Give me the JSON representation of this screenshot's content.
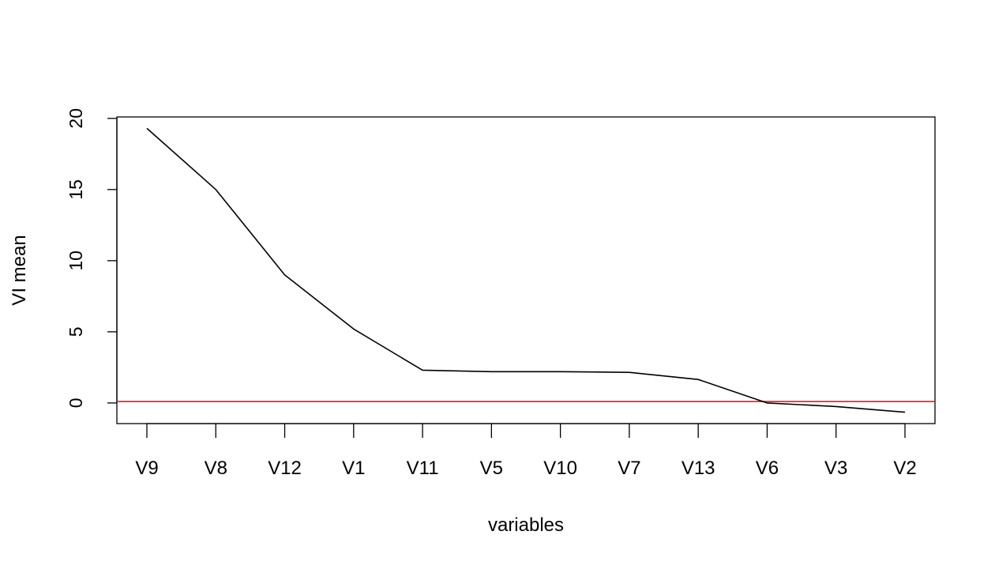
{
  "chart_data": {
    "type": "line",
    "title": "",
    "xlabel": "variables",
    "ylabel": "VI mean",
    "categories": [
      "V9",
      "V8",
      "V12",
      "V1",
      "V11",
      "V5",
      "V10",
      "V7",
      "V13",
      "V6",
      "V3",
      "V2"
    ],
    "series": [
      {
        "values": [
          19.3,
          15.0,
          9.0,
          5.2,
          2.3,
          2.2,
          2.2,
          2.15,
          1.65,
          0.0,
          -0.25,
          -0.65
        ],
        "color": "#000000"
      }
    ],
    "ylim": [
      -1.45,
      20.1
    ],
    "yticks": [
      0,
      5,
      10,
      15,
      20
    ],
    "reference_line": {
      "y": 0.1,
      "color": "#e31a1c"
    },
    "grid": false,
    "legend": "none"
  }
}
